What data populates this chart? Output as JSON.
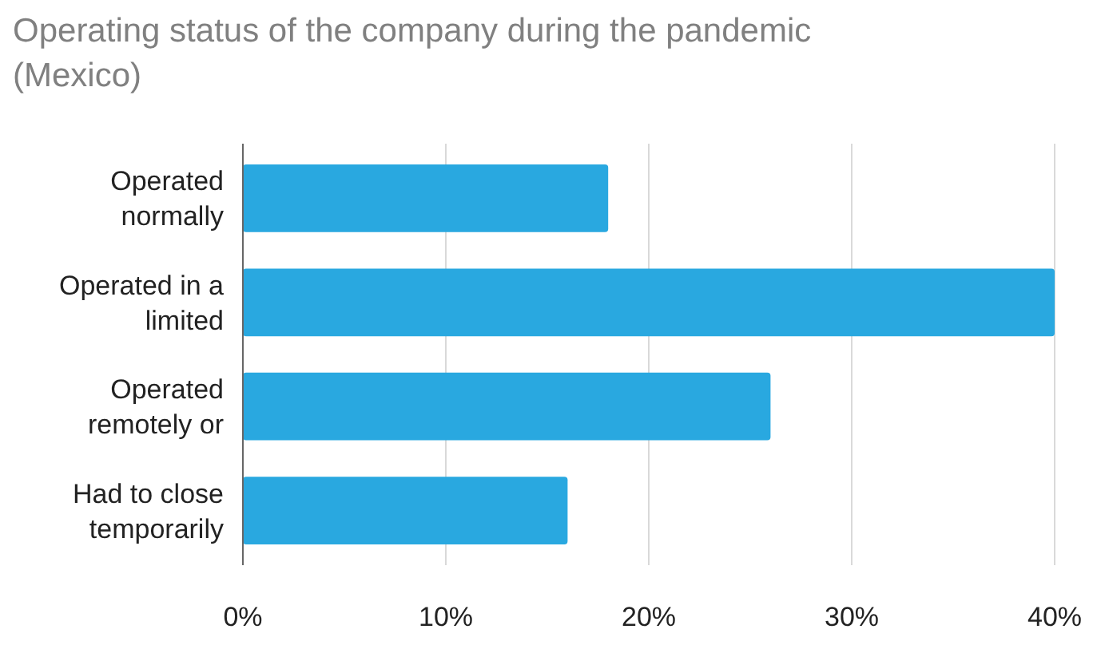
{
  "chart_data": {
    "type": "bar",
    "orientation": "horizontal",
    "title": "Operating status of the company during the pandemic (Mexico)",
    "categories": [
      "Operated normally",
      "Operated in a limited",
      "Operated remotely or",
      "Had to close temporarily"
    ],
    "values": [
      18,
      40,
      26,
      16
    ],
    "color": "#29a8e0",
    "xlim": [
      0,
      40
    ],
    "xticks": [
      {
        "value": 0,
        "label": "0%"
      },
      {
        "value": 10,
        "label": "10%"
      },
      {
        "value": 20,
        "label": "20%"
      },
      {
        "value": 30,
        "label": "30%"
      },
      {
        "value": 40,
        "label": "40%"
      }
    ],
    "grid": "x"
  }
}
